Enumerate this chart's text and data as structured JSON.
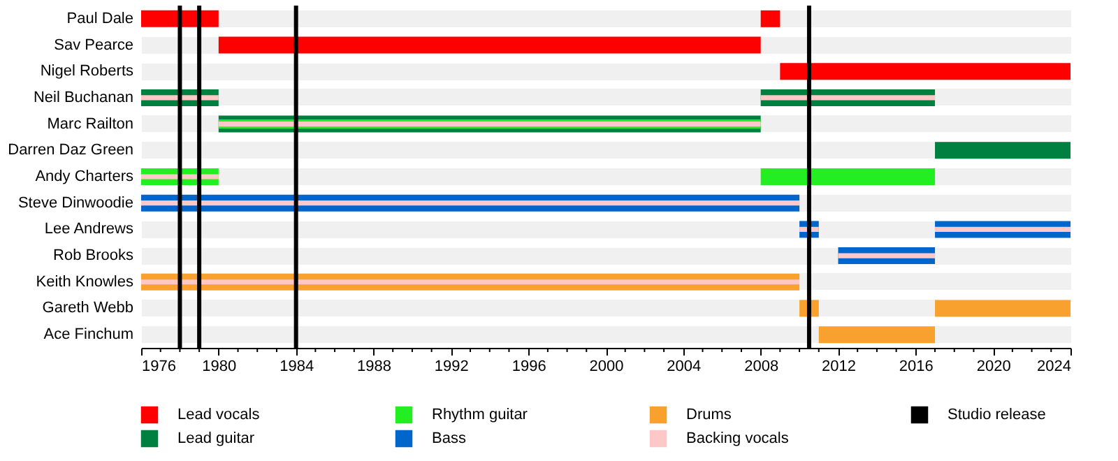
{
  "chart_data": {
    "type": "bar",
    "orientation": "horizontal",
    "legend": "bottom",
    "grid": "y",
    "categories": [
      "Paul Dale",
      "Sav Pearce",
      "Nigel Roberts",
      "Neil Buchanan",
      "Marc Railton",
      "Darren Daz Green",
      "Andy Charters",
      "Steve Dinwoodie",
      "Lee Andrews",
      "Rob Brooks",
      "Keith Knowles",
      "Gareth Webb",
      "Ace Finchum"
    ],
    "series": [
      {
        "name": "Lead vocals",
        "color": "#ff0000",
        "base": [
          1976,
          1980,
          2009,
          null,
          null,
          null,
          null,
          null,
          null,
          null,
          null,
          null,
          null
        ],
        "values": [
          4,
          28,
          15,
          null,
          null,
          null,
          null,
          null,
          null,
          null,
          null,
          null,
          null
        ]
      },
      {
        "color": "#ff0000",
        "base": [
          2008,
          null,
          null,
          null,
          null,
          null,
          null,
          null,
          null,
          null,
          null,
          null,
          null
        ],
        "values": [
          1,
          null,
          null,
          null,
          null,
          null,
          null,
          null,
          null,
          null,
          null,
          null,
          null
        ]
      },
      {
        "name": "Lead guitar",
        "color": "#008040",
        "base": [
          null,
          null,
          null,
          1976,
          1980,
          2017,
          null,
          null,
          null,
          null,
          null,
          null,
          null
        ],
        "values": [
          null,
          null,
          null,
          4,
          28,
          7,
          null,
          null,
          null,
          null,
          null,
          null,
          null
        ]
      },
      {
        "color": "#008040",
        "base": [
          null,
          null,
          null,
          2008,
          null,
          null,
          null,
          null,
          null,
          null,
          null,
          null,
          null
        ],
        "values": [
          null,
          null,
          null,
          9,
          null,
          null,
          null,
          null,
          null,
          null,
          null,
          null,
          null
        ]
      },
      {
        "name": "Rhythm guitar",
        "color": "#22ee22",
        "base": [
          null,
          null,
          null,
          null,
          1980,
          null,
          1976,
          null,
          null,
          null,
          null,
          null,
          null
        ],
        "values": [
          null,
          null,
          null,
          null,
          28,
          null,
          4,
          null,
          null,
          null,
          null,
          null,
          null
        ]
      },
      {
        "color": "#22ee22",
        "base": [
          null,
          null,
          null,
          null,
          null,
          null,
          2008,
          null,
          null,
          null,
          null,
          null,
          null
        ],
        "values": [
          null,
          null,
          null,
          null,
          null,
          null,
          9,
          null,
          null,
          null,
          null,
          null,
          null
        ]
      },
      {
        "name": "Bass",
        "color": "#0066cc",
        "base": [
          null,
          null,
          null,
          null,
          null,
          null,
          null,
          1976,
          2010,
          2012,
          null,
          null,
          null
        ],
        "values": [
          null,
          null,
          null,
          null,
          null,
          null,
          null,
          34,
          1,
          5,
          null,
          null,
          null
        ]
      },
      {
        "color": "#0066cc",
        "base": [
          null,
          null,
          null,
          null,
          null,
          null,
          null,
          null,
          2017,
          null,
          null,
          null,
          null
        ],
        "values": [
          null,
          null,
          null,
          null,
          null,
          null,
          null,
          null,
          7,
          null,
          null,
          null,
          null
        ]
      },
      {
        "name": "Drums",
        "color": "#f9a12e",
        "base": [
          null,
          null,
          null,
          null,
          null,
          null,
          null,
          null,
          null,
          null,
          1976,
          2010,
          2011
        ],
        "values": [
          null,
          null,
          null,
          null,
          null,
          null,
          null,
          null,
          null,
          null,
          34,
          1,
          6
        ]
      },
      {
        "color": "#f9a12e",
        "base": [
          null,
          null,
          null,
          null,
          null,
          null,
          null,
          null,
          null,
          null,
          null,
          2017,
          null
        ],
        "values": [
          null,
          null,
          null,
          null,
          null,
          null,
          null,
          null,
          null,
          null,
          null,
          7,
          null
        ]
      },
      {
        "name": "Backing vocals",
        "color": "#ffc8c8",
        "base": [
          null,
          null,
          null,
          1976,
          1980,
          null,
          1976,
          1976,
          2010,
          2012,
          1976,
          null,
          null
        ],
        "values": [
          null,
          null,
          null,
          4,
          28,
          null,
          4,
          34,
          1,
          5,
          34,
          null,
          null
        ]
      },
      {
        "color": "#ffc8c8",
        "base": [
          null,
          null,
          null,
          2008,
          null,
          null,
          null,
          null,
          2017,
          null,
          null,
          null,
          null
        ],
        "values": [
          null,
          null,
          null,
          9,
          null,
          null,
          null,
          null,
          7,
          null,
          null,
          null,
          null
        ]
      }
    ],
    "xlim": [
      1976,
      2024
    ],
    "xticks": [
      1976,
      {
        "value": 1977,
        "label": null
      },
      {
        "value": 1978,
        "label": null
      },
      {
        "value": 1979,
        "label": null
      },
      1980,
      {
        "value": 1981,
        "label": null
      },
      {
        "value": 1982,
        "label": null
      },
      {
        "value": 1983,
        "label": null
      },
      1984,
      {
        "value": 1985,
        "label": null
      },
      {
        "value": 1986,
        "label": null
      },
      {
        "value": 1987,
        "label": null
      },
      1988,
      {
        "value": 1989,
        "label": null
      },
      {
        "value": 1990,
        "label": null
      },
      {
        "value": 1991,
        "label": null
      },
      1992,
      {
        "value": 1993,
        "label": null
      },
      {
        "value": 1994,
        "label": null
      },
      {
        "value": 1995,
        "label": null
      },
      1996,
      {
        "value": 1997,
        "label": null
      },
      {
        "value": 1998,
        "label": null
      },
      {
        "value": 1999,
        "label": null
      },
      2000,
      {
        "value": 2001,
        "label": null
      },
      {
        "value": 2002,
        "label": null
      },
      {
        "value": 2003,
        "label": null
      },
      2004,
      {
        "value": 2005,
        "label": null
      },
      {
        "value": 2006,
        "label": null
      },
      {
        "value": 2007,
        "label": null
      },
      2008,
      {
        "value": 2009,
        "label": null
      },
      {
        "value": 2010,
        "label": null
      },
      {
        "value": 2011,
        "label": null
      },
      2012,
      {
        "value": 2013,
        "label": null
      },
      {
        "value": 2014,
        "label": null
      },
      {
        "value": 2015,
        "label": null
      },
      2016,
      {
        "value": 2017,
        "label": null
      },
      {
        "value": 2018,
        "label": null
      },
      {
        "value": 2019,
        "label": null
      },
      2020,
      {
        "value": 2021,
        "label": null
      },
      {
        "value": 2022,
        "label": null
      },
      {
        "value": 2023,
        "label": null
      },
      2024
    ],
    "ref_lines": [
      {
        "axis": "x",
        "value": 1978,
        "color": "#000000",
        "label": "Studio release"
      },
      {
        "axis": "x",
        "value": 1979,
        "color": "#000000"
      },
      {
        "axis": "x",
        "value": 1984,
        "color": "#000000"
      },
      {
        "axis": "x",
        "value": 2010.5,
        "color": "#000000"
      }
    ]
  }
}
